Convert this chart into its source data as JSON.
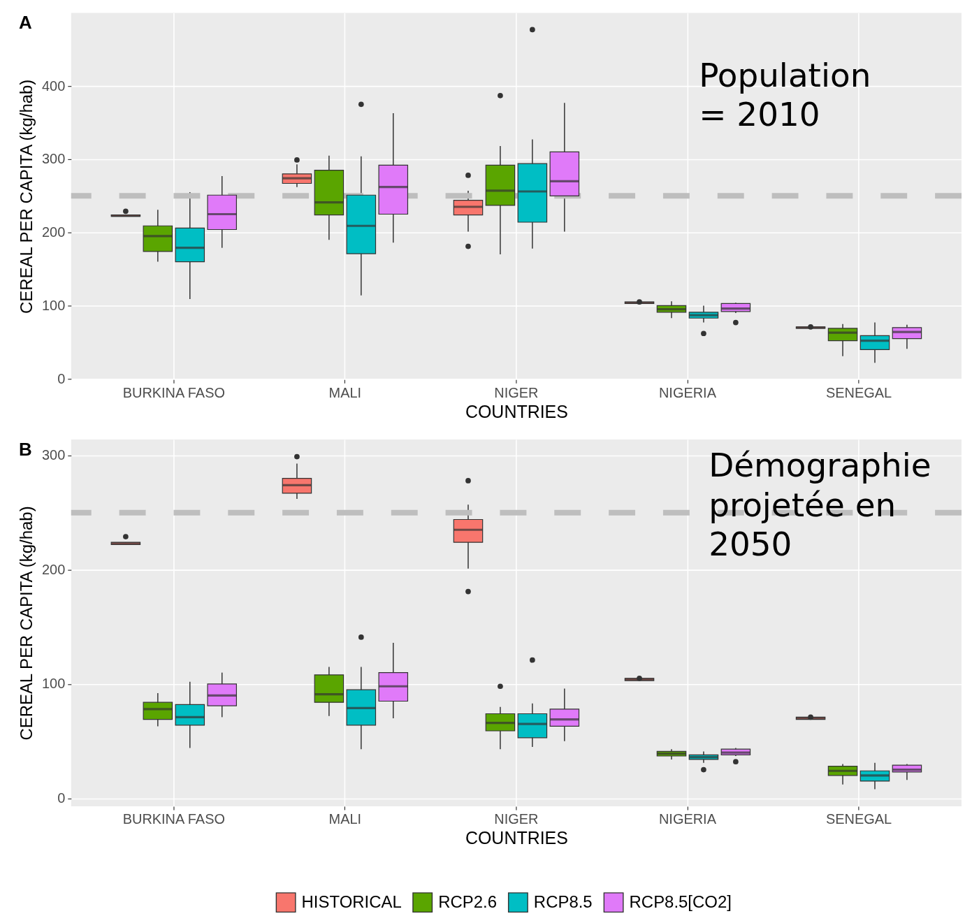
{
  "chart_data": [
    {
      "type": "box",
      "title": "A",
      "xlabel": "COUNTRIES",
      "ylabel": "CEREAL PER CAPITA (kg/hab)",
      "categories": [
        "BURKINA FASO",
        "MALI",
        "NIGER",
        "NIGERIA",
        "SENEGAL"
      ],
      "series": [
        {
          "name": "HISTORICAL",
          "color": "#f8766d",
          "boxes": [
            {
              "low": 222,
              "q1": 222,
              "median": 223,
              "q3": 224,
              "high": 224,
              "outliers": [
                229
              ]
            },
            {
              "low": 262,
              "q1": 267,
              "median": 274,
              "q3": 280,
              "high": 293,
              "outliers": [
                299
              ]
            },
            {
              "low": 201,
              "q1": 224,
              "median": 235,
              "q3": 244,
              "high": 257,
              "outliers": [
                278,
                181
              ]
            },
            {
              "low": 103,
              "q1": 103,
              "median": 104,
              "q3": 105,
              "high": 105,
              "outliers": [
                105
              ]
            },
            {
              "low": 69,
              "q1": 69,
              "median": 70,
              "q3": 71,
              "high": 71,
              "outliers": [
                71
              ]
            }
          ]
        },
        {
          "name": "RCP2.6",
          "color": "#5aa500",
          "boxes": [
            {
              "low": 160,
              "q1": 174,
              "median": 195,
              "q3": 209,
              "high": 231
            },
            {
              "low": 190,
              "q1": 224,
              "median": 241,
              "q3": 285,
              "high": 305
            },
            {
              "low": 170,
              "q1": 237,
              "median": 257,
              "q3": 292,
              "high": 318,
              "outliers": [
                387
              ]
            },
            {
              "low": 83,
              "q1": 91,
              "median": 95,
              "q3": 100,
              "high": 106
            },
            {
              "low": 31,
              "q1": 52,
              "median": 63,
              "q3": 69,
              "high": 75
            }
          ]
        },
        {
          "name": "RCP8.5",
          "color": "#00bec4",
          "boxes": [
            {
              "low": 109,
              "q1": 160,
              "median": 179,
              "q3": 206,
              "high": 255
            },
            {
              "low": 114,
              "q1": 171,
              "median": 209,
              "q3": 251,
              "high": 304,
              "outliers": [
                375
              ]
            },
            {
              "low": 178,
              "q1": 214,
              "median": 256,
              "q3": 294,
              "high": 327,
              "outliers": [
                477
              ]
            },
            {
              "low": 77,
              "q1": 83,
              "median": 87,
              "q3": 91,
              "high": 100,
              "outliers": [
                62
              ]
            },
            {
              "low": 22,
              "q1": 40,
              "median": 52,
              "q3": 59,
              "high": 77
            }
          ]
        },
        {
          "name": "RCP8.5[CO2]",
          "color": "#e07af9",
          "boxes": [
            {
              "low": 179,
              "q1": 204,
              "median": 225,
              "q3": 251,
              "high": 277
            },
            {
              "low": 186,
              "q1": 225,
              "median": 262,
              "q3": 292,
              "high": 363
            },
            {
              "low": 201,
              "q1": 250,
              "median": 270,
              "q3": 310,
              "high": 377
            },
            {
              "low": 90,
              "q1": 92,
              "median": 96,
              "q3": 103,
              "high": 104,
              "outliers": [
                77
              ]
            },
            {
              "low": 41,
              "q1": 55,
              "median": 64,
              "q3": 70,
              "high": 74
            }
          ]
        }
      ],
      "ylim": [
        -1,
        500
      ],
      "yticks": [
        0,
        100,
        200,
        300,
        400
      ],
      "grid": true,
      "legend": "bottom",
      "ref_lines": [
        {
          "axis": "y",
          "value": 250,
          "color": "#bebebe",
          "line_style": "dashed"
        }
      ],
      "annotations": [
        "Population\n= 2010"
      ]
    },
    {
      "type": "box",
      "title": "B",
      "xlabel": "COUNTRIES",
      "ylabel": "CEREAL PER CAPITA (kg/hab)",
      "categories": [
        "BURKINA FASO",
        "MALI",
        "NIGER",
        "NIGERIA",
        "SENEGAL"
      ],
      "series": [
        {
          "name": "HISTORICAL",
          "color": "#f8766d",
          "boxes": [
            {
              "low": 222,
              "q1": 222,
              "median": 223,
              "q3": 224,
              "high": 224,
              "outliers": [
                229
              ]
            },
            {
              "low": 262,
              "q1": 267,
              "median": 274,
              "q3": 280,
              "high": 293,
              "outliers": [
                299
              ]
            },
            {
              "low": 201,
              "q1": 224,
              "median": 235,
              "q3": 244,
              "high": 257,
              "outliers": [
                278,
                181
              ]
            },
            {
              "low": 103,
              "q1": 103,
              "median": 104,
              "q3": 105,
              "high": 105,
              "outliers": [
                105
              ]
            },
            {
              "low": 69,
              "q1": 69,
              "median": 70,
              "q3": 71,
              "high": 71,
              "outliers": [
                71
              ]
            }
          ]
        },
        {
          "name": "RCP2.6",
          "color": "#5aa500",
          "boxes": [
            {
              "low": 63,
              "q1": 69,
              "median": 78,
              "q3": 84,
              "high": 92
            },
            {
              "low": 72,
              "q1": 84,
              "median": 91,
              "q3": 108,
              "high": 115
            },
            {
              "low": 43,
              "q1": 59,
              "median": 66,
              "q3": 74,
              "high": 80,
              "outliers": [
                98
              ]
            },
            {
              "low": 34,
              "q1": 37,
              "median": 39,
              "q3": 41,
              "high": 43
            },
            {
              "low": 12,
              "q1": 20,
              "median": 24,
              "q3": 28,
              "high": 30
            }
          ]
        },
        {
          "name": "RCP8.5",
          "color": "#00bec4",
          "boxes": [
            {
              "low": 44,
              "q1": 64,
              "median": 71,
              "q3": 82,
              "high": 102
            },
            {
              "low": 43,
              "q1": 64,
              "median": 79,
              "q3": 95,
              "high": 115,
              "outliers": [
                141
              ]
            },
            {
              "low": 45,
              "q1": 53,
              "median": 65,
              "q3": 74,
              "high": 83,
              "outliers": [
                121
              ]
            },
            {
              "low": 31,
              "q1": 34,
              "median": 36,
              "q3": 38,
              "high": 41,
              "outliers": [
                25
              ]
            },
            {
              "low": 8,
              "q1": 15,
              "median": 20,
              "q3": 24,
              "high": 31
            }
          ]
        },
        {
          "name": "RCP8.5[CO2]",
          "color": "#e07af9",
          "boxes": [
            {
              "low": 71,
              "q1": 81,
              "median": 90,
              "q3": 100,
              "high": 110
            },
            {
              "low": 70,
              "q1": 85,
              "median": 98,
              "q3": 110,
              "high": 136
            },
            {
              "low": 50,
              "q1": 63,
              "median": 69,
              "q3": 78,
              "high": 96
            },
            {
              "low": 37,
              "q1": 38,
              "median": 40,
              "q3": 43,
              "high": 44,
              "outliers": [
                32
              ]
            },
            {
              "low": 16,
              "q1": 23,
              "median": 25,
              "q3": 29,
              "high": 30
            }
          ]
        }
      ],
      "ylim": [
        -7,
        314
      ],
      "yticks": [
        0,
        100,
        200,
        300
      ],
      "grid": true,
      "legend": "bottom",
      "ref_lines": [
        {
          "axis": "y",
          "value": 250,
          "color": "#bebebe",
          "line_style": "dashed"
        }
      ],
      "annotations": [
        "Démographie\nprojetée en\n2050"
      ]
    }
  ]
}
